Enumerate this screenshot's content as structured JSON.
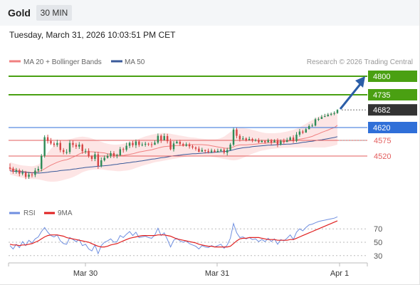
{
  "header": {
    "instrument": "Gold",
    "timeframe": "30 MIN",
    "datetime": "Tuesday, March 31, 2026 10:03:51 PM CET"
  },
  "legend": {
    "ma20_bb": "MA 20 + Bollinger Bands",
    "ma50": "MA 50",
    "credit": "Research © 2026 Trading Central",
    "rsi": "RSI",
    "rsi_ma": "9MA"
  },
  "colors": {
    "target_green": "#4aa012",
    "pivot_blue": "#2f6fd8",
    "support_red": "#e35d5d",
    "current_dark": "#333333",
    "ma20": "#f08080",
    "ma50": "#3a5a9a",
    "bollinger_fill": "#fde2e2",
    "arrow": "#2b5ea8",
    "candle_up": "#2e8b57",
    "candle_down": "#d64545",
    "rsi_line": "#6f8fe0",
    "rsi_ma_line": "#e02020"
  },
  "levels": [
    {
      "value": 4800,
      "label": "4800",
      "kind": "target"
    },
    {
      "value": 4735,
      "label": "4735",
      "kind": "target"
    },
    {
      "value": 4682,
      "label": "4682",
      "kind": "current"
    },
    {
      "value": 4620,
      "label": "4620",
      "kind": "pivot"
    },
    {
      "value": 4575,
      "label": "4575",
      "kind": "support"
    },
    {
      "value": 4520,
      "label": "4520",
      "kind": "support"
    }
  ],
  "x_axis": {
    "ticks": [
      "Mar 30",
      "Mar 31",
      "Apr 1"
    ]
  },
  "rsi_axis": {
    "ticks": [
      70,
      50,
      30
    ]
  },
  "chart_data": {
    "type": "candlestick",
    "price_range": [
      4365,
      4820
    ],
    "rsi_range": [
      20,
      80
    ],
    "candles": [
      [
        4480,
        4476,
        4494,
        4468
      ],
      [
        4476,
        4465,
        4482,
        4458
      ],
      [
        4465,
        4470,
        4478,
        4458
      ],
      [
        4470,
        4458,
        4476,
        4449
      ],
      [
        4458,
        4462,
        4472,
        4452
      ],
      [
        4462,
        4447,
        4468,
        4439
      ],
      [
        4447,
        4455,
        4464,
        4440
      ],
      [
        4455,
        4454,
        4463,
        4445
      ],
      [
        4454,
        4469,
        4478,
        4446
      ],
      [
        4469,
        4475,
        4484,
        4462
      ],
      [
        4475,
        4521,
        4527,
        4466
      ],
      [
        4521,
        4586,
        4593,
        4514
      ],
      [
        4586,
        4573,
        4595,
        4564
      ],
      [
        4573,
        4564,
        4583,
        4559
      ],
      [
        4564,
        4559,
        4571,
        4552
      ],
      [
        4559,
        4566,
        4577,
        4552
      ],
      [
        4566,
        4541,
        4574,
        4533
      ],
      [
        4541,
        4534,
        4548,
        4526
      ],
      [
        4534,
        4534,
        4544,
        4526
      ],
      [
        4534,
        4566,
        4576,
        4527
      ],
      [
        4566,
        4559,
        4574,
        4550
      ],
      [
        4559,
        4553,
        4566,
        4545
      ],
      [
        4553,
        4560,
        4569,
        4545
      ],
      [
        4560,
        4537,
        4564,
        4528
      ],
      [
        4537,
        4538,
        4546,
        4528
      ],
      [
        4538,
        4519,
        4547,
        4514
      ],
      [
        4519,
        4510,
        4523,
        4502
      ],
      [
        4510,
        4526,
        4535,
        4502
      ],
      [
        4526,
        4485,
        4535,
        4475
      ],
      [
        4485,
        4505,
        4515,
        4480
      ],
      [
        4505,
        4514,
        4522,
        4501
      ],
      [
        4514,
        4520,
        4528,
        4511
      ],
      [
        4520,
        4530,
        4538,
        4513
      ],
      [
        4530,
        4520,
        4537,
        4513
      ],
      [
        4520,
        4523,
        4528,
        4512
      ],
      [
        4523,
        4544,
        4552,
        4519
      ],
      [
        4544,
        4542,
        4550,
        4532
      ],
      [
        4542,
        4556,
        4567,
        4536
      ],
      [
        4556,
        4566,
        4571,
        4548
      ],
      [
        4566,
        4558,
        4573,
        4551
      ],
      [
        4558,
        4571,
        4578,
        4548
      ],
      [
        4571,
        4559,
        4577,
        4552
      ],
      [
        4559,
        4560,
        4568,
        4554
      ],
      [
        4560,
        4563,
        4570,
        4553
      ],
      [
        4563,
        4561,
        4567,
        4555
      ],
      [
        4561,
        4559,
        4569,
        4550
      ],
      [
        4559,
        4567,
        4575,
        4560
      ],
      [
        4567,
        4591,
        4599,
        4562
      ],
      [
        4591,
        4575,
        4596,
        4566
      ],
      [
        4575,
        4590,
        4599,
        4580
      ],
      [
        4590,
        4572,
        4598,
        4564
      ],
      [
        4572,
        4544,
        4581,
        4540
      ],
      [
        4544,
        4564,
        4572,
        4536
      ],
      [
        4564,
        4570,
        4576,
        4565
      ],
      [
        4570,
        4562,
        4577,
        4556
      ],
      [
        4562,
        4556,
        4567,
        4553
      ],
      [
        4556,
        4561,
        4568,
        4553
      ],
      [
        4561,
        4554,
        4567,
        4546
      ],
      [
        4554,
        4550,
        4560,
        4544
      ],
      [
        4550,
        4546,
        4554,
        4539
      ],
      [
        4546,
        4535,
        4554,
        4533
      ],
      [
        4535,
        4541,
        4549,
        4536
      ],
      [
        4541,
        4538,
        4543,
        4529
      ],
      [
        4538,
        4534,
        4546,
        4529
      ],
      [
        4534,
        4539,
        4546,
        4530
      ],
      [
        4539,
        4534,
        4544,
        4532
      ],
      [
        4534,
        4538,
        4546,
        4532
      ],
      [
        4538,
        4542,
        4546,
        4534
      ],
      [
        4542,
        4532,
        4548,
        4526
      ],
      [
        4532,
        4541,
        4549,
        4522
      ],
      [
        4541,
        4560,
        4566,
        4540
      ],
      [
        4560,
        4613,
        4619,
        4555
      ],
      [
        4613,
        4591,
        4619,
        4582
      ],
      [
        4591,
        4579,
        4597,
        4571
      ],
      [
        4579,
        4582,
        4590,
        4576
      ],
      [
        4582,
        4575,
        4586,
        4571
      ],
      [
        4575,
        4580,
        4588,
        4577
      ],
      [
        4580,
        4574,
        4584,
        4568
      ],
      [
        4574,
        4576,
        4581,
        4571
      ],
      [
        4576,
        4568,
        4583,
        4565
      ],
      [
        4568,
        4573,
        4577,
        4570
      ],
      [
        4573,
        4568,
        4576,
        4563
      ],
      [
        4568,
        4575,
        4581,
        4573
      ],
      [
        4575,
        4567,
        4580,
        4559
      ],
      [
        4567,
        4574,
        4579,
        4569
      ],
      [
        4574,
        4560,
        4582,
        4551
      ],
      [
        4560,
        4573,
        4578,
        4557
      ],
      [
        4573,
        4569,
        4581,
        4563
      ],
      [
        4569,
        4575,
        4584,
        4570
      ],
      [
        4575,
        4585,
        4589,
        4576
      ],
      [
        4585,
        4573,
        4593,
        4566
      ],
      [
        4573,
        4595,
        4604,
        4568
      ],
      [
        4595,
        4606,
        4615,
        4588
      ],
      [
        4606,
        4602,
        4612,
        4597
      ],
      [
        4602,
        4614,
        4618,
        4610
      ],
      [
        4614,
        4625,
        4631,
        4614
      ],
      [
        4625,
        4627,
        4634,
        4622
      ],
      [
        4627,
        4649,
        4654,
        4624
      ],
      [
        4649,
        4650,
        4656,
        4643
      ],
      [
        4650,
        4657,
        4664,
        4654
      ],
      [
        4657,
        4660,
        4668,
        4657
      ],
      [
        4660,
        4665,
        4671,
        4658
      ],
      [
        4665,
        4668,
        4673,
        4661
      ],
      [
        4668,
        4671,
        4677,
        4663
      ],
      [
        4671,
        4682,
        4684,
        4668
      ]
    ],
    "ma20": [
      4476,
      4473,
      4471,
      4468,
      4466,
      4464,
      4463,
      4462,
      4463,
      4465,
      4469,
      4475,
      4482,
      4488,
      4493,
      4498,
      4502,
      4505,
      4507,
      4511,
      4516,
      4521,
      4527,
      4532,
      4534,
      4535,
      4535,
      4534,
      4533,
      4532,
      4531,
      4528,
      4526,
      4524,
      4523,
      4523,
      4522,
      4524,
      4526,
      4528,
      4531,
      4534,
      4536,
      4538,
      4540,
      4542,
      4545,
      4548,
      4551,
      4553,
      4554,
      4555,
      4556,
      4557,
      4557,
      4558,
      4558,
      4559,
      4560,
      4560,
      4560,
      4560,
      4559,
      4558,
      4556,
      4554,
      4552,
      4550,
      4548,
      4547,
      4548,
      4552,
      4557,
      4559,
      4559,
      4559,
      4560,
      4561,
      4562,
      4563,
      4564,
      4565,
      4566,
      4567,
      4568,
      4569,
      4570,
      4571,
      4572,
      4573,
      4574,
      4576,
      4579,
      4581,
      4583,
      4586,
      4589,
      4594,
      4598,
      4603,
      4607,
      4611,
      4616,
      4620,
      4628
    ],
    "ma50": [
      4468,
      4467,
      4466,
      4465,
      4464,
      4463,
      4462,
      4461,
      4461,
      4460,
      4461,
      4462,
      4463,
      4465,
      4466,
      4467,
      4469,
      4470,
      4471,
      4472,
      4474,
      4475,
      4477,
      4478,
      4480,
      4481,
      4482,
      4483,
      4484,
      4485,
      4486,
      4487,
      4488,
      4490,
      4491,
      4493,
      4494,
      4496,
      4497,
      4499,
      4500,
      4502,
      4503,
      4505,
      4507,
      4509,
      4510,
      4512,
      4514,
      4515,
      4517,
      4519,
      4521,
      4522,
      4523,
      4525,
      4526,
      4527,
      4528,
      4528,
      4529,
      4530,
      4531,
      4532,
      4532,
      4533,
      4534,
      4535,
      4536,
      4537,
      4539,
      4542,
      4545,
      4547,
      4549,
      4550,
      4551,
      4553,
      4554,
      4555,
      4556,
      4557,
      4558,
      4558,
      4559,
      4560,
      4561,
      4561,
      4562,
      4562,
      4563,
      4564,
      4566,
      4568,
      4569,
      4571,
      4572,
      4574,
      4576,
      4577,
      4579,
      4581,
      4583,
      4585,
      4588
    ],
    "bb_upper": [
      4498,
      4495,
      4492,
      4489,
      4487,
      4486,
      4485,
      4484,
      4486,
      4490,
      4500,
      4515,
      4532,
      4545,
      4556,
      4564,
      4570,
      4574,
      4576,
      4579,
      4582,
      4585,
      4587,
      4588,
      4587,
      4585,
      4582,
      4578,
      4574,
      4570,
      4566,
      4563,
      4561,
      4560,
      4560,
      4561,
      4563,
      4566,
      4569,
      4573,
      4577,
      4581,
      4585,
      4589,
      4592,
      4595,
      4597,
      4599,
      4601,
      4601,
      4600,
      4598,
      4596,
      4594,
      4592,
      4590,
      4588,
      4586,
      4585,
      4584,
      4582,
      4581,
      4580,
      4579,
      4579,
      4579,
      4580,
      4583,
      4588,
      4596,
      4604,
      4612,
      4616,
      4618,
      4618,
      4617,
      4615,
      4612,
      4609,
      4606,
      4603,
      4601,
      4600,
      4600,
      4600,
      4601,
      4602,
      4604,
      4606,
      4609,
      4612,
      4616,
      4621,
      4627,
      4633,
      4640,
      4646,
      4652,
      4658,
      4662,
      4665,
      4668,
      4670,
      4673,
      4676
    ],
    "bb_lower": [
      4455,
      4452,
      4449,
      4446,
      4444,
      4442,
      4440,
      4439,
      4439,
      4438,
      4436,
      4433,
      4431,
      4430,
      4430,
      4431,
      4433,
      4436,
      4439,
      4442,
      4446,
      4451,
      4457,
      4463,
      4467,
      4470,
      4472,
      4473,
      4473,
      4473,
      4472,
      4470,
      4469,
      4468,
      4467,
      4467,
      4468,
      4469,
      4471,
      4474,
      4478,
      4482,
      4486,
      4489,
      4492,
      4495,
      4498,
      4500,
      4502,
      4504,
      4506,
      4508,
      4510,
      4512,
      4514,
      4516,
      4518,
      4520,
      4521,
      4522,
      4522,
      4522,
      4521,
      4520,
      4518,
      4516,
      4514,
      4512,
      4510,
      4508,
      4506,
      4505,
      4506,
      4509,
      4513,
      4518,
      4523,
      4528,
      4532,
      4536,
      4539,
      4541,
      4543,
      4545,
      4546,
      4547,
      4548,
      4549,
      4549,
      4550,
      4550,
      4550,
      4550,
      4550,
      4550,
      4550,
      4550,
      4550,
      4550,
      4550,
      4550,
      4552,
      4554,
      4557,
      4560
    ],
    "rsi": [
      45,
      40,
      47,
      42,
      51,
      45,
      53,
      49,
      55,
      58,
      66,
      72,
      65,
      60,
      58,
      61,
      52,
      48,
      47,
      57,
      54,
      51,
      54,
      45,
      47,
      40,
      37,
      46,
      33,
      45,
      50,
      52,
      55,
      50,
      51,
      60,
      57,
      62,
      66,
      60,
      65,
      57,
      58,
      59,
      57,
      56,
      61,
      71,
      60,
      64,
      54,
      43,
      53,
      56,
      52,
      50,
      52,
      48,
      46,
      44,
      40,
      45,
      43,
      42,
      45,
      43,
      45,
      47,
      41,
      46,
      56,
      78,
      64,
      57,
      58,
      55,
      57,
      54,
      55,
      51,
      54,
      51,
      56,
      51,
      55,
      47,
      54,
      52,
      56,
      61,
      54,
      65,
      70,
      67,
      72,
      76,
      77,
      79,
      81,
      82,
      83,
      84,
      85,
      86,
      88
    ],
    "rsi_ma": [
      47,
      46,
      46,
      45,
      46,
      46,
      47,
      48,
      50,
      52,
      55,
      58,
      60,
      61,
      61,
      61,
      60,
      59,
      57,
      56,
      55,
      54,
      53,
      52,
      51,
      50,
      48,
      46,
      44,
      43,
      43,
      44,
      46,
      47,
      48,
      50,
      52,
      54,
      56,
      57,
      58,
      59,
      60,
      60,
      60,
      60,
      60,
      61,
      61,
      61,
      60,
      59,
      57,
      55,
      54,
      53,
      52,
      51,
      50,
      49,
      47,
      46,
      45,
      44,
      44,
      43,
      43,
      43,
      43,
      43,
      44,
      48,
      52,
      55,
      56,
      56,
      57,
      57,
      57,
      57,
      56,
      55,
      54,
      54,
      54,
      53,
      53,
      53,
      53,
      54,
      54,
      56,
      58,
      60,
      62,
      64,
      66,
      68,
      70,
      72,
      74,
      76,
      78,
      80,
      82
    ]
  }
}
